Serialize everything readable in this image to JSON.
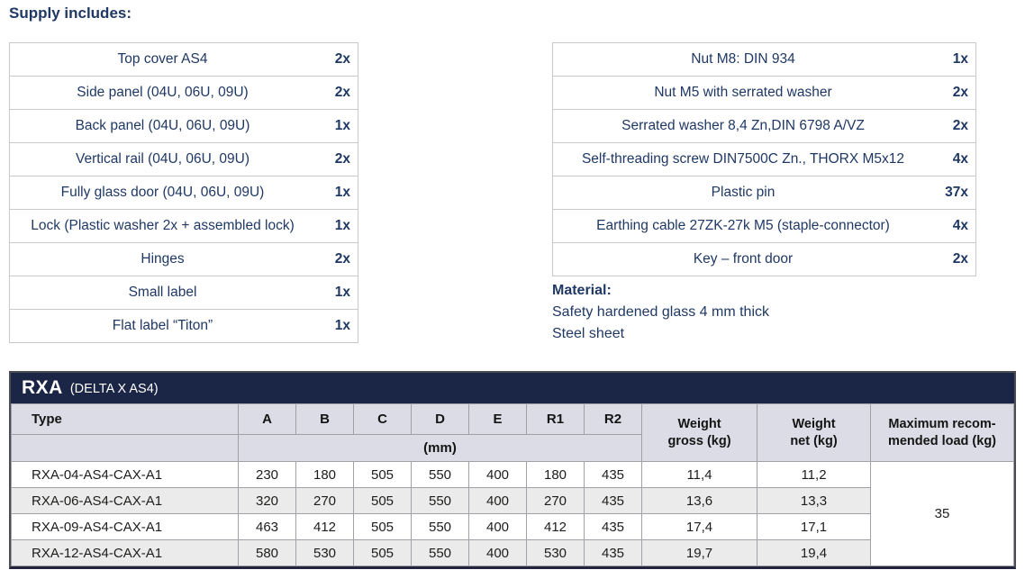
{
  "page": {
    "title": "Supply includes:"
  },
  "supply_left": {
    "items": [
      {
        "label": "Top cover AS4",
        "qty": "2x"
      },
      {
        "label": "Side panel (04U, 06U, 09U)",
        "qty": "2x"
      },
      {
        "label": "Back panel (04U, 06U, 09U)",
        "qty": "1x"
      },
      {
        "label": "Vertical rail (04U, 06U, 09U)",
        "qty": "2x"
      },
      {
        "label": "Fully glass door (04U, 06U, 09U)",
        "qty": "1x"
      },
      {
        "label": "Lock (Plastic washer 2x + assembled lock)",
        "qty": "1x"
      },
      {
        "label": "Hinges",
        "qty": "2x"
      },
      {
        "label": "Small label",
        "qty": "1x"
      },
      {
        "label": "Flat label “Titon”",
        "qty": "1x"
      }
    ]
  },
  "supply_right": {
    "items": [
      {
        "label": "Nut M8: DIN 934",
        "qty": "1x"
      },
      {
        "label": "Nut M5 with serrated washer",
        "qty": "2x"
      },
      {
        "label": "Serrated washer 8,4 Zn,DIN 6798 A/VZ",
        "qty": "2x"
      },
      {
        "label": "Self-threading screw DIN7500C Zn., THORX M5x12",
        "qty": "4x"
      },
      {
        "label": "Plastic pin",
        "qty": "37x"
      },
      {
        "label": "Earthing cable 27ZK-27k M5 (staple-connector)",
        "qty": "4x"
      },
      {
        "label": "Key – front door",
        "qty": "2x"
      }
    ]
  },
  "material": {
    "heading": "Material:",
    "line1": "Safety hardened glass 4 mm thick",
    "line2": "Steel sheet"
  },
  "product_table": {
    "title": "RXA",
    "subtitle": "(DELTA X AS4)",
    "headers": {
      "type": "Type",
      "dims": [
        "A",
        "B",
        "C",
        "D",
        "E",
        "R1",
        "R2"
      ],
      "unit": "(mm)",
      "weight_gross": "Weight\ngross (kg)",
      "weight_net": "Weight\nnet (kg)",
      "max_load": "Maximum recom-\nmended load (kg)"
    },
    "rows": [
      {
        "type": "RXA-04-AS4-CAX-A1",
        "a": "230",
        "b": "180",
        "c": "505",
        "d": "550",
        "e": "400",
        "r1": "180",
        "r2": "435",
        "gross": "11,4",
        "net": "11,2"
      },
      {
        "type": "RXA-06-AS4-CAX-A1",
        "a": "320",
        "b": "270",
        "c": "505",
        "d": "550",
        "e": "400",
        "r1": "270",
        "r2": "435",
        "gross": "13,6",
        "net": "13,3"
      },
      {
        "type": "RXA-09-AS4-CAX-A1",
        "a": "463",
        "b": "412",
        "c": "505",
        "d": "550",
        "e": "400",
        "r1": "412",
        "r2": "435",
        "gross": "17,4",
        "net": "17,1"
      },
      {
        "type": "RXA-12-AS4-CAX-A1",
        "a": "580",
        "b": "530",
        "c": "505",
        "d": "550",
        "e": "400",
        "r1": "530",
        "r2": "435",
        "gross": "19,7",
        "net": "19,4"
      }
    ],
    "max_load_value": "35"
  },
  "colors": {
    "navy_text": "#1f3864",
    "header_bar_bg": "#1b2545",
    "header_row_bg": "#dcdce6",
    "alt_row_bg": "#ebebeb"
  }
}
